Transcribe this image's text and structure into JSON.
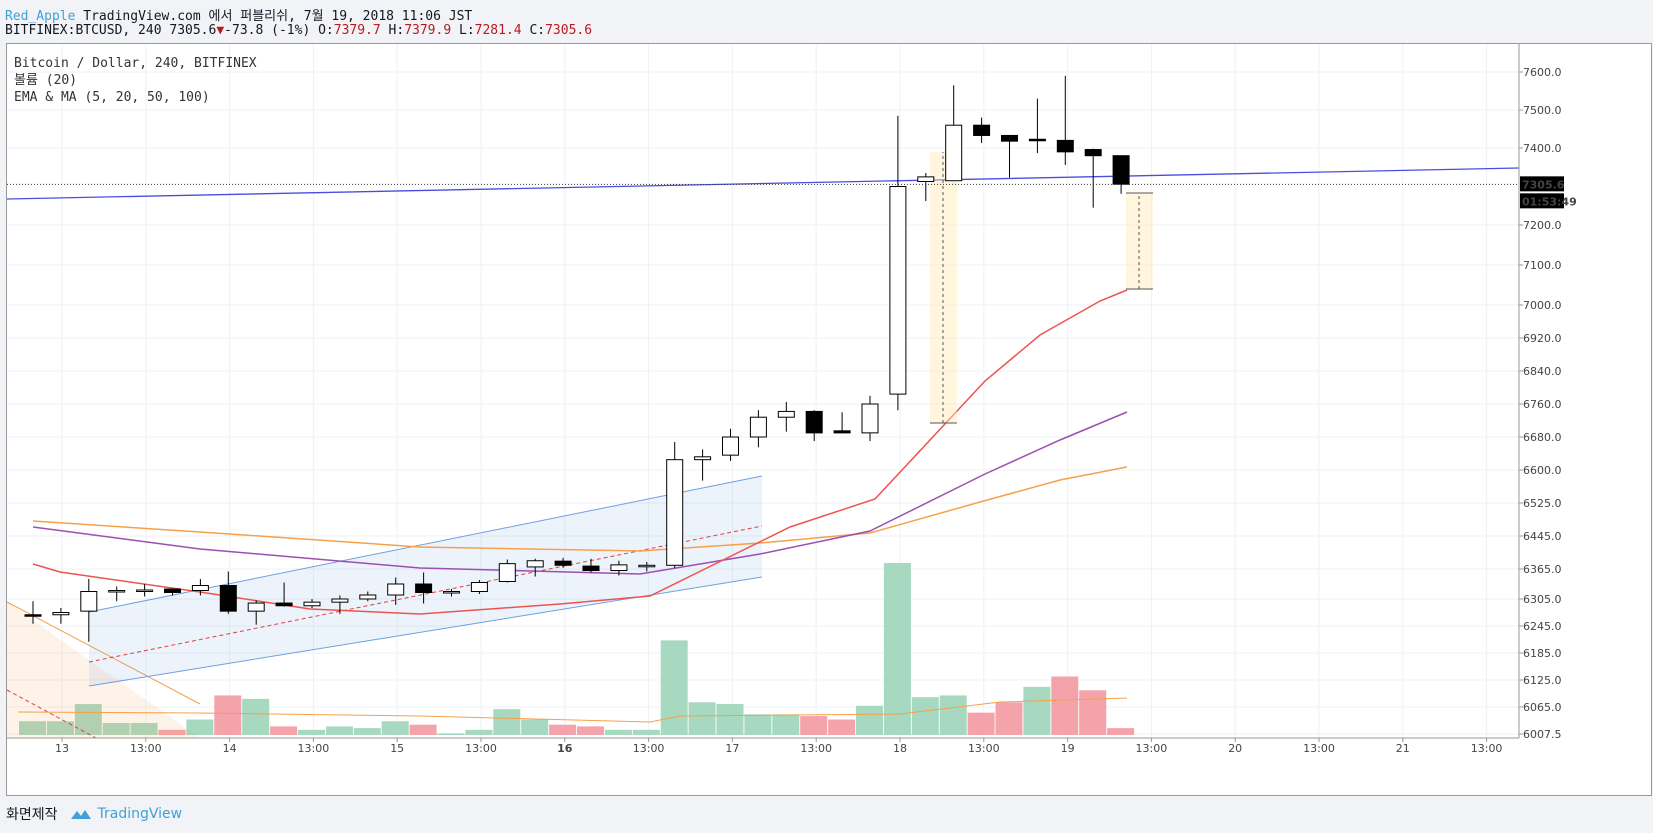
{
  "header": {
    "user": "Red_Apple",
    "line1_rest": "TradingView.com 에서 퍼블리쉬, 7월 19, 2018 11:06 JST",
    "symbol": "BITFINEX:BTCUSD, 240",
    "last": "7305.6",
    "change": "-73.8 (-1%)",
    "o_label": "O:",
    "o_val": "7379.7",
    "h_label": "H:",
    "h_val": "7379.9",
    "l_label": "L:",
    "l_val": "7281.4",
    "c_label": "C:",
    "c_val": "7305.6"
  },
  "legend": {
    "line1": "Bitcoin / Dollar, 240, BITFINEX",
    "line2": "볼륨 (20)",
    "line3": "EMA & MA (5, 20, 50, 100)"
  },
  "footer": {
    "made": "화면제작",
    "brand": "TradingView"
  },
  "colors": {
    "up_fill": "#ffffff",
    "down_fill": "#000000",
    "vol_up": "#a7d8c0",
    "vol_down": "#f5a3aa",
    "ema_red": "#ef5350",
    "ema_purple": "#9c4fb3",
    "ema_orange": "#f7a04a",
    "trend_blue": "#4a4ee0",
    "channel": "#6fa0e0"
  },
  "chart_data": {
    "type": "candlestick",
    "price_axis_labels": [
      "7600.0",
      "7500.0",
      "7400.0",
      "7200.0",
      "7100.0",
      "7000.0",
      "6920.0",
      "6840.0",
      "6760.0",
      "6680.0",
      "6600.0",
      "6525.0",
      "6445.0",
      "6365.0",
      "6305.0",
      "6245.0",
      "6185.0",
      "6125.0",
      "6065.0",
      "6007.5"
    ],
    "current_price_label": "7305.6",
    "countdown_label": "01:53:49",
    "time_axis_labels": [
      "13",
      "13:00",
      "14",
      "13:00",
      "15",
      "13:00",
      "16",
      "13:00",
      "17",
      "13:00",
      "18",
      "13:00",
      "19",
      "13:00",
      "20",
      "13:00",
      "21",
      "13:00"
    ],
    "candles": [
      {
        "o": 6270,
        "h": 6300,
        "l": 6250,
        "c": 6268
      },
      {
        "o": 6270,
        "h": 6285,
        "l": 6250,
        "c": 6275
      },
      {
        "o": 6278,
        "h": 6345,
        "l": 6210,
        "c": 6320
      },
      {
        "o": 6320,
        "h": 6330,
        "l": 6300,
        "c": 6322
      },
      {
        "o": 6322,
        "h": 6335,
        "l": 6310,
        "c": 6323
      },
      {
        "o": 6325,
        "h": 6325,
        "l": 6312,
        "c": 6318
      },
      {
        "o": 6322,
        "h": 6345,
        "l": 6312,
        "c": 6332
      },
      {
        "o": 6332,
        "h": 6360,
        "l": 6272,
        "c": 6278
      },
      {
        "o": 6278,
        "h": 6302,
        "l": 6248,
        "c": 6296
      },
      {
        "o": 6296,
        "h": 6338,
        "l": 6288,
        "c": 6290
      },
      {
        "o": 6290,
        "h": 6305,
        "l": 6285,
        "c": 6298
      },
      {
        "o": 6298,
        "h": 6312,
        "l": 6272,
        "c": 6305
      },
      {
        "o": 6305,
        "h": 6320,
        "l": 6300,
        "c": 6313
      },
      {
        "o": 6313,
        "h": 6348,
        "l": 6292,
        "c": 6335
      },
      {
        "o": 6335,
        "h": 6358,
        "l": 6295,
        "c": 6318
      },
      {
        "o": 6318,
        "h": 6325,
        "l": 6310,
        "c": 6320
      },
      {
        "o": 6320,
        "h": 6343,
        "l": 6315,
        "c": 6338
      },
      {
        "o": 6340,
        "h": 6388,
        "l": 6338,
        "c": 6378
      },
      {
        "o": 6370,
        "h": 6390,
        "l": 6350,
        "c": 6385
      },
      {
        "o": 6384,
        "h": 6392,
        "l": 6368,
        "c": 6374
      },
      {
        "o": 6372,
        "h": 6390,
        "l": 6358,
        "c": 6362
      },
      {
        "o": 6362,
        "h": 6385,
        "l": 6352,
        "c": 6375
      },
      {
        "o": 6372,
        "h": 6382,
        "l": 6360,
        "c": 6374
      },
      {
        "o": 6374,
        "h": 6668,
        "l": 6368,
        "c": 6625
      },
      {
        "o": 6625,
        "h": 6650,
        "l": 6576,
        "c": 6632
      },
      {
        "o": 6636,
        "h": 6700,
        "l": 6622,
        "c": 6680
      },
      {
        "o": 6680,
        "h": 6745,
        "l": 6655,
        "c": 6728
      },
      {
        "o": 6728,
        "h": 6765,
        "l": 6693,
        "c": 6742
      },
      {
        "o": 6742,
        "h": 6745,
        "l": 6670,
        "c": 6690
      },
      {
        "o": 6695,
        "h": 6740,
        "l": 6689,
        "c": 6690
      },
      {
        "o": 6690,
        "h": 6780,
        "l": 6670,
        "c": 6760
      },
      {
        "o": 6784,
        "h": 7485,
        "l": 6745,
        "c": 7300
      },
      {
        "o": 7313,
        "h": 7335,
        "l": 7262,
        "c": 7325
      },
      {
        "o": 7315,
        "h": 7565,
        "l": 7315,
        "c": 7460
      },
      {
        "o": 7460,
        "h": 7480,
        "l": 7413,
        "c": 7433
      },
      {
        "o": 7433,
        "h": 7432,
        "l": 7323,
        "c": 7418
      },
      {
        "o": 7423,
        "h": 7530,
        "l": 7387,
        "c": 7420
      },
      {
        "o": 7420,
        "h": 7590,
        "l": 7356,
        "c": 7390
      },
      {
        "o": 7396,
        "h": 7398,
        "l": 7245,
        "c": 7380
      },
      {
        "o": 7380,
        "h": 7380,
        "l": 7281,
        "c": 7306
      }
    ],
    "volume": [
      {
        "v": 0.08,
        "up": true
      },
      {
        "v": 0.08,
        "up": true
      },
      {
        "v": 0.18,
        "up": true
      },
      {
        "v": 0.07,
        "up": true
      },
      {
        "v": 0.07,
        "up": true
      },
      {
        "v": 0.03,
        "up": false
      },
      {
        "v": 0.09,
        "up": true
      },
      {
        "v": 0.23,
        "up": false
      },
      {
        "v": 0.21,
        "up": true
      },
      {
        "v": 0.05,
        "up": false
      },
      {
        "v": 0.03,
        "up": true
      },
      {
        "v": 0.05,
        "up": true
      },
      {
        "v": 0.04,
        "up": true
      },
      {
        "v": 0.08,
        "up": true
      },
      {
        "v": 0.06,
        "up": false
      },
      {
        "v": 0.01,
        "up": true
      },
      {
        "v": 0.03,
        "up": true
      },
      {
        "v": 0.15,
        "up": true
      },
      {
        "v": 0.09,
        "up": true
      },
      {
        "v": 0.06,
        "up": false
      },
      {
        "v": 0.05,
        "up": false
      },
      {
        "v": 0.03,
        "up": true
      },
      {
        "v": 0.03,
        "up": true
      },
      {
        "v": 0.55,
        "up": true
      },
      {
        "v": 0.19,
        "up": true
      },
      {
        "v": 0.18,
        "up": true
      },
      {
        "v": 0.12,
        "up": true
      },
      {
        "v": 0.12,
        "up": true
      },
      {
        "v": 0.11,
        "up": false
      },
      {
        "v": 0.09,
        "up": false
      },
      {
        "v": 0.17,
        "up": true
      },
      {
        "v": 1.0,
        "up": true
      },
      {
        "v": 0.22,
        "up": true
      },
      {
        "v": 0.23,
        "up": true
      },
      {
        "v": 0.13,
        "up": false
      },
      {
        "v": 0.19,
        "up": false
      },
      {
        "v": 0.28,
        "up": true
      },
      {
        "v": 0.34,
        "up": false
      },
      {
        "v": 0.26,
        "up": false
      },
      {
        "v": 0.04,
        "up": false
      }
    ]
  }
}
